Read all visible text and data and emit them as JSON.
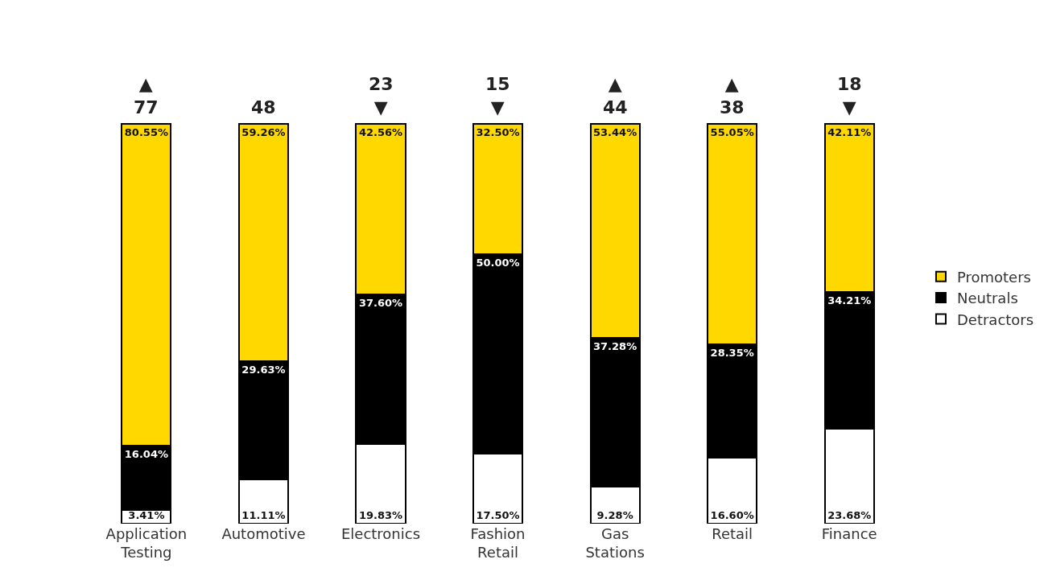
{
  "chart_data": {
    "type": "bar",
    "stacked": true,
    "categories": [
      "Application Testing",
      "Automotive",
      "Electronics",
      "Fashion Retail",
      "Gas Stations",
      "Retail",
      "Finance"
    ],
    "series": [
      {
        "name": "Detractors",
        "color": "#ffffff",
        "values": [
          3.41,
          11.11,
          19.83,
          17.5,
          9.28,
          16.6,
          23.68
        ],
        "value_labels": [
          "3.41%",
          "11.11%",
          "19.83%",
          "17.50%",
          "9.28%",
          "16.60%",
          "23.68%"
        ]
      },
      {
        "name": "Neutrals",
        "color": "#000000",
        "values": [
          16.04,
          29.63,
          37.6,
          50.0,
          37.28,
          28.35,
          34.21
        ],
        "value_labels": [
          "16.04%",
          "29.63%",
          "37.60%",
          "50.00%",
          "37.28%",
          "28.35%",
          "34.21%"
        ]
      },
      {
        "name": "Promoters",
        "color": "#ffd800",
        "values": [
          80.55,
          59.26,
          42.56,
          32.5,
          53.44,
          55.05,
          42.11
        ],
        "value_labels": [
          "80.55%",
          "59.26%",
          "42.56%",
          "32.50%",
          "53.44%",
          "55.05%",
          "42.11%"
        ]
      }
    ],
    "annotations": [
      "▲\n77",
      "48",
      "23\n▼",
      "15\n▼",
      "▲\n44",
      "▲\n38",
      "18\n▼"
    ],
    "legend": "right"
  }
}
